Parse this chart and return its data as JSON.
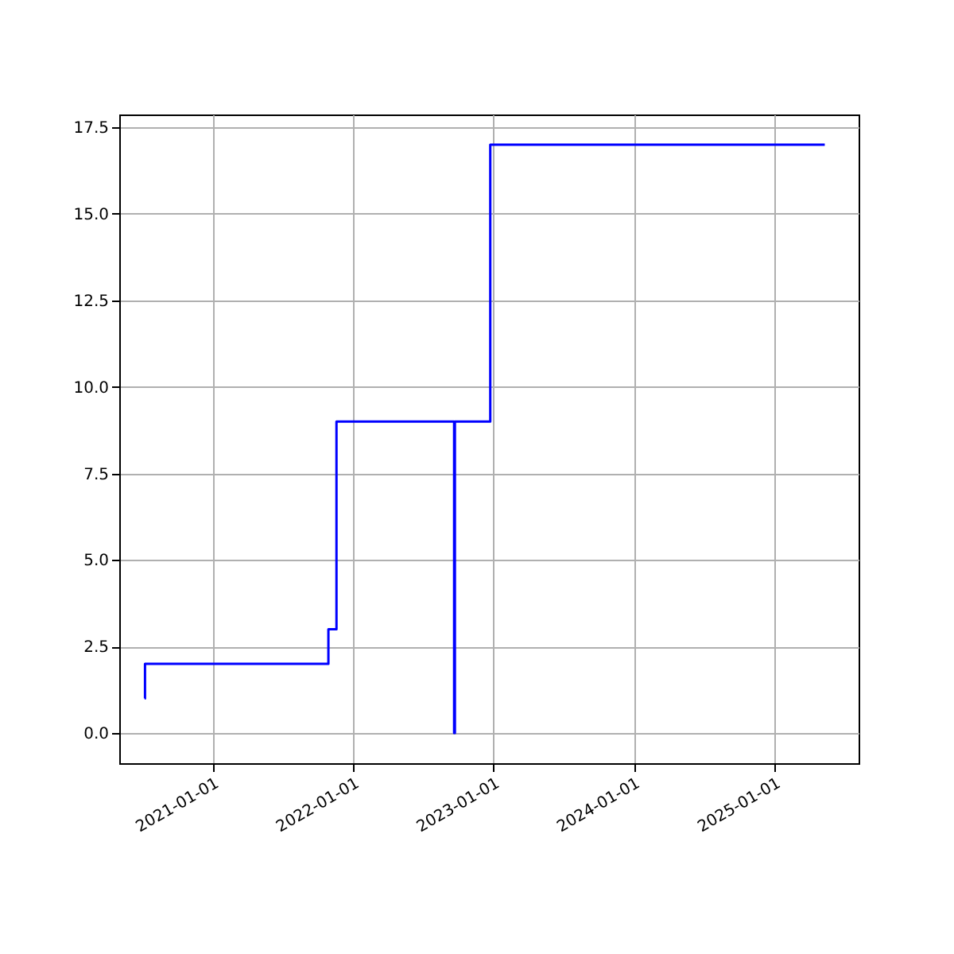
{
  "chart_data": {
    "type": "step",
    "x": [
      "2020-07-08",
      "2020-07-09",
      "2021-10-29",
      "2021-11-19",
      "2022-09-21",
      "2022-09-23",
      "2022-12-24",
      "2025-05-12"
    ],
    "series": [
      {
        "color": "#0000ff",
        "values": [
          1,
          2,
          3,
          9,
          0,
          9,
          17,
          17
        ]
      }
    ],
    "xlim": [
      "2020-05-03",
      "2025-08-08"
    ],
    "xticks": [
      "2021-01-01",
      "2022-01-01",
      "2023-01-01",
      "2024-01-01",
      "2025-01-01"
    ],
    "ylim": [
      -0.87,
      17.87
    ],
    "yticks": [
      {
        "value": 0,
        "label": "0.0"
      },
      {
        "value": 2.5,
        "label": "2.5"
      },
      {
        "value": 5,
        "label": "5.0"
      },
      {
        "value": 7.5,
        "label": "7.5"
      },
      {
        "value": 10,
        "label": "10.0"
      },
      {
        "value": 12.5,
        "label": "12.5"
      },
      {
        "value": 15,
        "label": "15.0"
      },
      {
        "value": 17.5,
        "label": "17.5"
      }
    ],
    "grid": true,
    "marker": "none",
    "line_style": "solid"
  }
}
